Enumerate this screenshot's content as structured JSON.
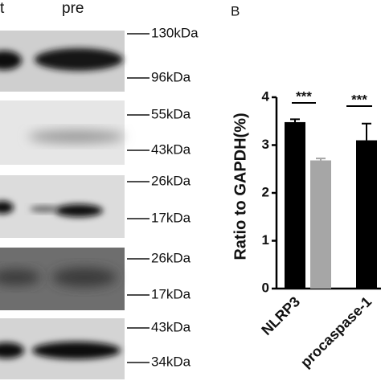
{
  "blot": {
    "header": [
      "t",
      "pre"
    ],
    "markers": [
      [
        "130kDa",
        "96kDa"
      ],
      [
        "55kDa",
        "43kDa"
      ],
      [
        "26kDa",
        "17kDa"
      ],
      [
        "26kDa",
        "17kDa"
      ],
      [
        "43kDa",
        "34kDa"
      ]
    ]
  },
  "chart_data": {
    "type": "bar",
    "panel_label": "B",
    "ylabel": "Ratio to GAPDH(%)",
    "categories": [
      "NLRP3",
      "procaspase-1"
    ],
    "series": [
      {
        "color": "#000000",
        "values": [
          3.48,
          3.1
        ],
        "errors": [
          0.06,
          0.35
        ]
      },
      {
        "color": "#a6a6a6",
        "values": [
          2.68,
          null
        ],
        "errors": [
          0.04,
          null
        ]
      }
    ],
    "annotations": [
      "***",
      "***"
    ],
    "ylim": [
      0,
      4
    ],
    "yticks": [
      0,
      1,
      2,
      3,
      4
    ]
  }
}
